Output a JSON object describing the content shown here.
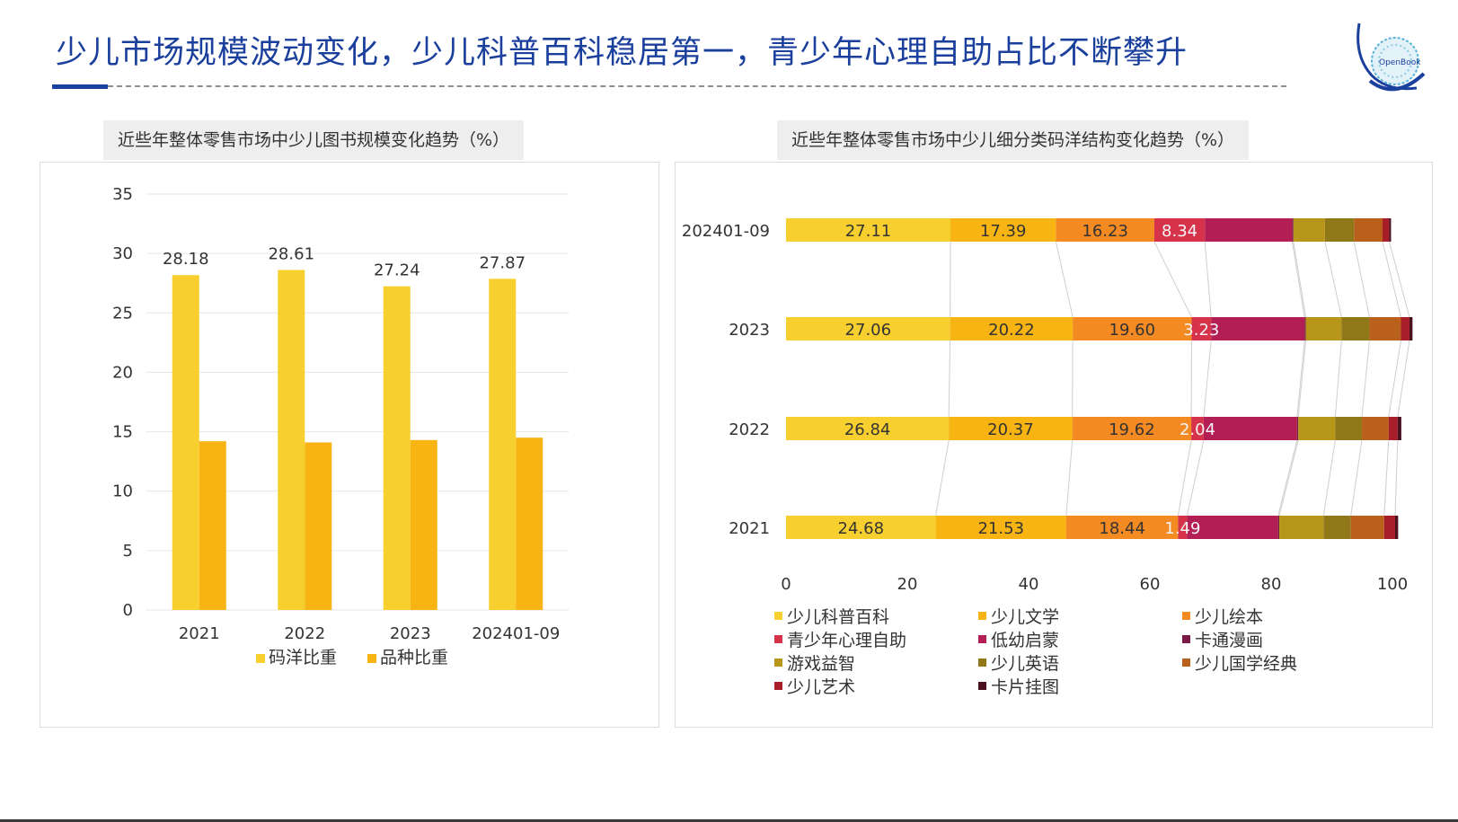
{
  "header": {
    "title": "少儿市场规模波动变化，少儿科普百科稳居第一，青少年心理自助占比不断攀升",
    "logo_text": "OpenBook"
  },
  "colors": {
    "title_blue": "#1a3f9c",
    "grid": "#e6e6e6",
    "axis_text": "#333333"
  },
  "chart_data": [
    {
      "type": "bar",
      "title": "近些年整体零售市场中少儿图书规模变化趋势（%）",
      "categories": [
        "2021",
        "2022",
        "2023",
        "202401-09"
      ],
      "series": [
        {
          "name": "码洋比重",
          "values": [
            28.18,
            28.61,
            27.24,
            27.87
          ],
          "color": "#f7d030",
          "labeled": true
        },
        {
          "name": "品种比重",
          "values": [
            14.2,
            14.1,
            14.3,
            14.5
          ],
          "color": "#f7b412",
          "labeled": false
        }
      ],
      "ylim": [
        0,
        35
      ],
      "yticks": [
        0,
        5,
        10,
        15,
        20,
        25,
        30,
        35
      ],
      "grid": true,
      "legend": "bottom"
    },
    {
      "type": "bar",
      "orientation": "horizontal",
      "stacked": true,
      "title": "近些年整体零售市场中少儿细分类码洋结构变化趋势（%）",
      "categories": [
        "202401-09",
        "2023",
        "2022",
        "2021"
      ],
      "series": [
        {
          "name": "少儿科普百科",
          "values": [
            27.11,
            27.06,
            26.84,
            24.68
          ],
          "color": "#f7d030",
          "labeled": true,
          "label_color": "#333333"
        },
        {
          "name": "少儿文学",
          "values": [
            17.39,
            20.22,
            20.37,
            21.53
          ],
          "color": "#f7b412",
          "labeled": true,
          "label_color": "#333333"
        },
        {
          "name": "少儿绘本",
          "values": [
            16.23,
            19.6,
            19.62,
            18.44
          ],
          "color": "#f48a22",
          "labeled": true,
          "label_color": "#333333"
        },
        {
          "name": "青少年心理自助",
          "values": [
            8.34,
            3.23,
            2.04,
            1.49
          ],
          "color": "#d6324a",
          "labeled": true,
          "label_color": "#f5f5f5"
        },
        {
          "name": "低幼启蒙",
          "values": [
            14.4,
            15.4,
            15.4,
            15.0
          ],
          "color": "#b31e55",
          "labeled": false
        },
        {
          "name": "卡通漫画",
          "values": [
            0.2,
            0.2,
            0.2,
            0.2
          ],
          "color": "#7c1a45",
          "labeled": false
        },
        {
          "name": "游戏益智",
          "values": [
            5.2,
            5.9,
            6.1,
            7.3
          ],
          "color": "#b8961a",
          "labeled": false
        },
        {
          "name": "少儿英语",
          "values": [
            4.8,
            4.6,
            4.4,
            4.5
          ],
          "color": "#907818",
          "labeled": false
        },
        {
          "name": "少儿国学经典",
          "values": [
            4.7,
            5.2,
            4.4,
            5.5
          ],
          "color": "#b8601c",
          "labeled": false
        },
        {
          "name": "少儿艺术",
          "values": [
            1.1,
            1.4,
            1.5,
            1.8
          ],
          "color": "#a81e28",
          "labeled": false
        },
        {
          "name": "卡片挂图",
          "values": [
            0.3,
            0.5,
            0.6,
            0.5
          ],
          "color": "#4a1220",
          "labeled": false
        }
      ],
      "xlim": [
        0,
        100
      ],
      "xticks": [
        0,
        20,
        40,
        60,
        80,
        100
      ],
      "grid": false,
      "legend": "bottom"
    }
  ]
}
